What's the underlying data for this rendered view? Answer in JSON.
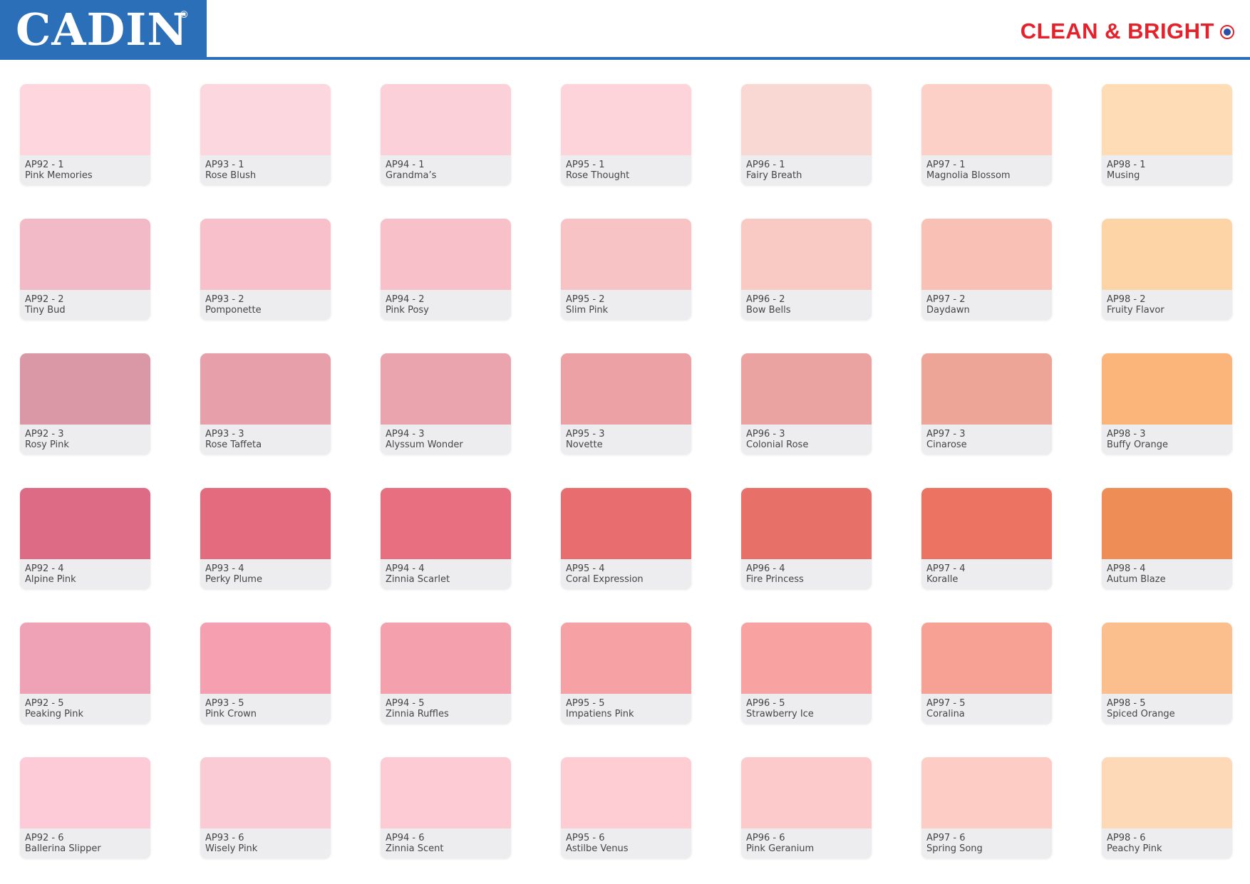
{
  "header": {
    "brand": "CADIN",
    "registered_mark": "®",
    "tagline": "CLEAN & BRIGHT",
    "brand_color": "#2a6fb8",
    "tagline_color": "#e3222b"
  },
  "swatches": [
    {
      "code": "AP92 - 1",
      "name": "Pink Memories",
      "color": "#fdd6de"
    },
    {
      "code": "AP93 - 1",
      "name": "Rose Blush",
      "color": "#fdd7df"
    },
    {
      "code": "AP94 - 1",
      "name": "Grandma’s",
      "color": "#fbd0d9"
    },
    {
      "code": "AP95 - 1",
      "name": "Rose Thought",
      "color": "#fcd4da"
    },
    {
      "code": "AP96 - 1",
      "name": "Fairy Breath",
      "color": "#f9d8d3"
    },
    {
      "code": "AP97 - 1",
      "name": "Magnolia Blossom",
      "color": "#fdd0c7"
    },
    {
      "code": "AP98 - 1",
      "name": "Musing",
      "color": "#fddcb6"
    },
    {
      "code": "AP92 - 2",
      "name": "Tiny Bud",
      "color": "#f2bac7"
    },
    {
      "code": "AP93 - 2",
      "name": "Pomponette",
      "color": "#f8c0cb"
    },
    {
      "code": "AP94 - 2",
      "name": "Pink Posy",
      "color": "#f8c0c9"
    },
    {
      "code": "AP95 - 2",
      "name": "Slim Pink",
      "color": "#f8c3c4"
    },
    {
      "code": "AP96 - 2",
      "name": "Bow Bells",
      "color": "#f9c9c3"
    },
    {
      "code": "AP97 - 2",
      "name": "Daydawn",
      "color": "#f9c1b5"
    },
    {
      "code": "AP98 - 2",
      "name": "Fruity Flavor",
      "color": "#fdd4a6"
    },
    {
      "code": "AP92 - 3",
      "name": "Rosy Pink",
      "color": "#da97a6"
    },
    {
      "code": "AP93 - 3",
      "name": "Rose Taffeta",
      "color": "#e7a0aa"
    },
    {
      "code": "AP94 - 3",
      "name": "Alyssum Wonder",
      "color": "#eaa4ae"
    },
    {
      "code": "AP95 - 3",
      "name": "Novette",
      "color": "#eca1a4"
    },
    {
      "code": "AP96 - 3",
      "name": "Colonial Rose",
      "color": "#eba3a2"
    },
    {
      "code": "AP97 - 3",
      "name": "Cinarose",
      "color": "#eca596"
    },
    {
      "code": "AP98 - 3",
      "name": "Buffy Orange",
      "color": "#fbb479"
    },
    {
      "code": "AP92 - 4",
      "name": "Alpine Pink",
      "color": "#dd6b85"
    },
    {
      "code": "AP93 - 4",
      "name": "Perky Plume",
      "color": "#e46b7e"
    },
    {
      "code": "AP94 - 4",
      "name": "Zinnia Scarlet",
      "color": "#e86f80"
    },
    {
      "code": "AP95 - 4",
      "name": "Coral Expression",
      "color": "#e86d6e"
    },
    {
      "code": "AP96 - 4",
      "name": "Fire Princess",
      "color": "#e77068"
    },
    {
      "code": "AP97 - 4",
      "name": "Koralle",
      "color": "#ec7262"
    },
    {
      "code": "AP98 - 4",
      "name": "Autum Blaze",
      "color": "#ef8d56"
    },
    {
      "code": "AP92 - 5",
      "name": "Peaking Pink",
      "color": "#efa2b5"
    },
    {
      "code": "AP93 - 5",
      "name": "Pink Crown",
      "color": "#f59fb0"
    },
    {
      "code": "AP94 - 5",
      "name": "Zinnia Ruffles",
      "color": "#f4a0ad"
    },
    {
      "code": "AP95 - 5",
      "name": "Impatiens Pink",
      "color": "#f6a1a4"
    },
    {
      "code": "AP96 - 5",
      "name": "Strawberry Ice",
      "color": "#f8a3a1"
    },
    {
      "code": "AP97 - 5",
      "name": "Coralina",
      "color": "#f6a193"
    },
    {
      "code": "AP98 - 5",
      "name": "Spiced Orange",
      "color": "#fbbf8d"
    },
    {
      "code": "AP92 - 6",
      "name": "Ballerina Slipper",
      "color": "#fdcbd8"
    },
    {
      "code": "AP93 - 6",
      "name": "Wisely Pink",
      "color": "#facbd4"
    },
    {
      "code": "AP94 - 6",
      "name": "Zinnia Scent",
      "color": "#fdcbd4"
    },
    {
      "code": "AP95 - 6",
      "name": "Astilbe Venus",
      "color": "#fdcdd3"
    },
    {
      "code": "AP96 - 6",
      "name": "Pink Geranium",
      "color": "#fccacb"
    },
    {
      "code": "AP97 - 6",
      "name": "Spring Song",
      "color": "#fdccc5"
    },
    {
      "code": "AP98  - 6",
      "name": "Peachy Pink",
      "color": "#fdd9b8"
    }
  ]
}
